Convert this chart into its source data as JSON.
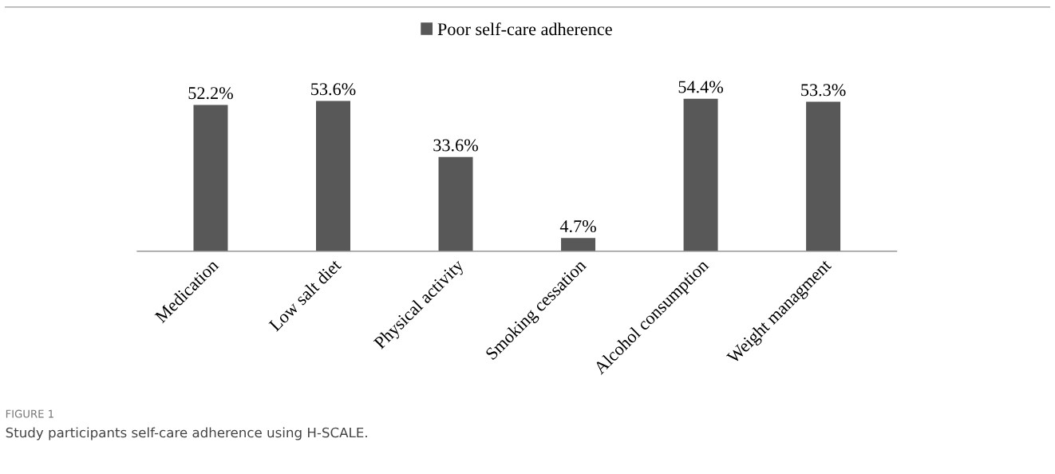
{
  "chart_data": {
    "type": "bar",
    "categories": [
      "Medication",
      "Low salt diet",
      "Physical activity",
      "Smoking cessation",
      "Alcohol consumption",
      "Weight managment"
    ],
    "series": [
      {
        "name": "Poor self-care adherence",
        "color": "#585858",
        "values": [
          52.2,
          53.6,
          33.6,
          4.7,
          54.4,
          53.3
        ],
        "value_labels": [
          "52.2%",
          "53.6%",
          "33.6%",
          "4.7%",
          "54.4%",
          "53.3%"
        ]
      }
    ],
    "legend": "top",
    "grid": false,
    "annotations": [
      "FIGURE 1",
      "Study participants self-care adherence using H-SCALE."
    ]
  }
}
